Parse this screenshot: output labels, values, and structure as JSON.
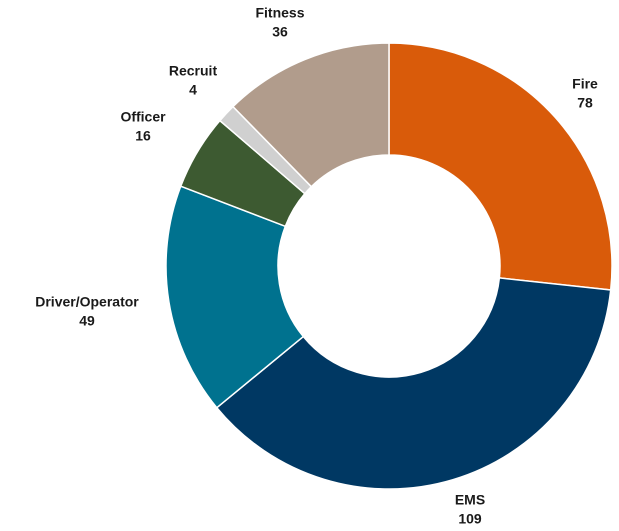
{
  "chart_data": {
    "type": "donut",
    "categories": [
      "Fire",
      "EMS",
      "Driver/Operator",
      "Officer",
      "Recruit",
      "Fitness"
    ],
    "values": [
      78,
      109,
      49,
      16,
      4,
      36
    ],
    "colors": [
      "#d95b0a",
      "#003863",
      "#00728f",
      "#3d5a31",
      "#d0d0d0",
      "#b19c8c"
    ]
  }
}
